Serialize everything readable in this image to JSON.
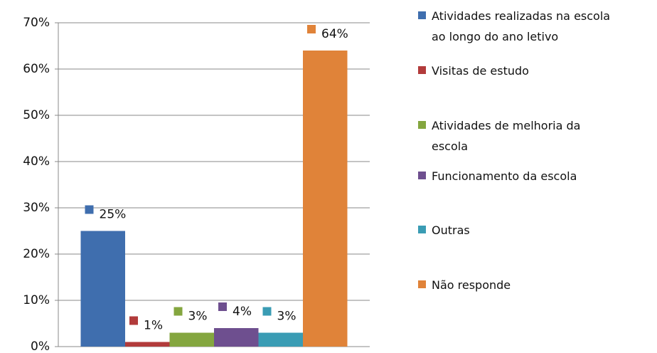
{
  "chart_data": {
    "type": "bar",
    "categories": [
      null
    ],
    "series": [
      {
        "name": "Atividades realizadas na escola\nao longo do ano letivo",
        "color": "#3f6eae",
        "values": [
          25
        ],
        "value_labels": [
          "25%"
        ]
      },
      {
        "name": "Visitas de estudo",
        "color": "#b23b3b",
        "values": [
          1
        ],
        "value_labels": [
          "1%"
        ]
      },
      {
        "name": "Atividades de melhoria da\nescola",
        "color": "#84a63f",
        "values": [
          3
        ],
        "value_labels": [
          "3%"
        ]
      },
      {
        "name": "Funcionamento da escola",
        "color": "#6e4f8f",
        "values": [
          4
        ],
        "value_labels": [
          "4%"
        ]
      },
      {
        "name": "Outras",
        "color": "#3a9cb4",
        "values": [
          3
        ],
        "value_labels": [
          "3%"
        ]
      },
      {
        "name": "Não responde",
        "color": "#e08339",
        "values": [
          64
        ],
        "value_labels": [
          "64%"
        ]
      }
    ],
    "ylim": [
      0,
      70
    ],
    "yticks": [
      {
        "value": 0,
        "label": "0%"
      },
      {
        "value": 10,
        "label": "10%"
      },
      {
        "value": 20,
        "label": "20%"
      },
      {
        "value": 30,
        "label": "30%"
      },
      {
        "value": 40,
        "label": "40%"
      },
      {
        "value": 50,
        "label": "50%"
      },
      {
        "value": 60,
        "label": "60%"
      },
      {
        "value": 70,
        "label": "70%"
      }
    ],
    "grid": true,
    "legend": "right"
  }
}
